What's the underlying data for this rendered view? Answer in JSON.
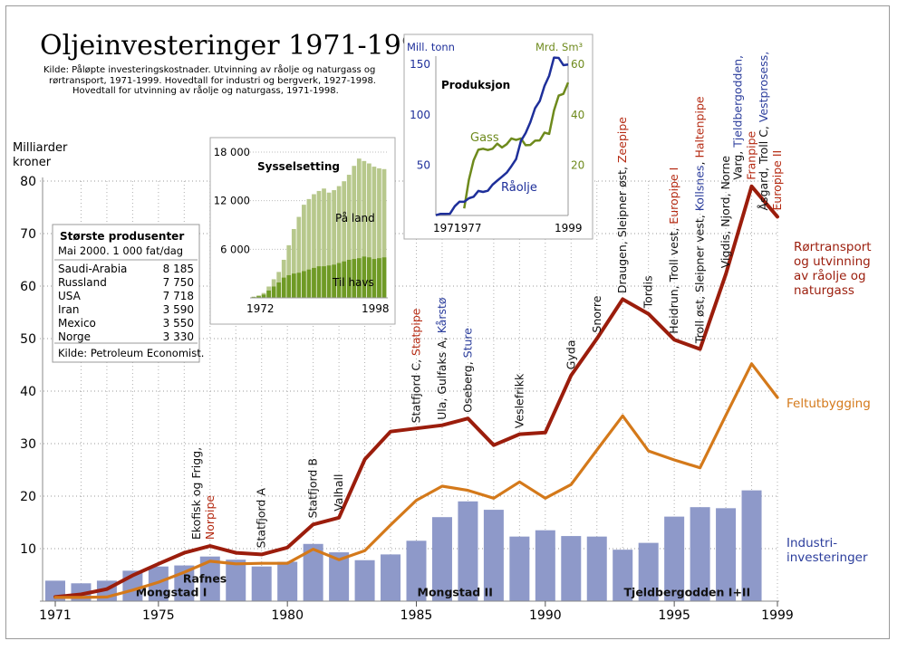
{
  "title": "Oljeinvesteringer 1971-1999",
  "source_lines": [
    "Kilde: Påløpte investeringskostnader. Utvinning av råolje og naturgass og",
    "rørtransport, 1971-1999. Hovedtall for industri og bergverk, 1927-1998.",
    "Hovedtall for utvinning av råolje og naturgass, 1971-1998."
  ],
  "colors": {
    "pipeline": "#9b1d0c",
    "field": "#d4791a",
    "industry_bar": "#8e99c9",
    "annot_black": "#111111",
    "annot_red": "#b52a12",
    "annot_blue": "#2b3d9c",
    "oil": "#1e2f9a",
    "gas": "#6e8a1c",
    "land": "#b7c88c",
    "sea": "#6f9a25"
  },
  "chart_data": {
    "type": "line",
    "ylabel": "Milliarder kroner",
    "ylim": [
      0,
      80
    ],
    "yticks": [
      10,
      20,
      30,
      40,
      50,
      60,
      70,
      80
    ],
    "xlim": [
      1971,
      1999
    ],
    "xticks": [
      1971,
      1975,
      1980,
      1985,
      1990,
      1995,
      1999
    ],
    "grid": "dotted",
    "x": [
      1971,
      1972,
      1973,
      1974,
      1975,
      1976,
      1977,
      1978,
      1979,
      1980,
      1981,
      1982,
      1983,
      1984,
      1985,
      1986,
      1987,
      1988,
      1989,
      1990,
      1991,
      1992,
      1993,
      1994,
      1995,
      1996,
      1997,
      1998,
      1999
    ],
    "series": [
      {
        "name": "Rørtransport og utvinning av råolje og naturgass",
        "type": "line",
        "values": [
          0.8,
          1.3,
          2.3,
          4.9,
          7.1,
          9.2,
          10.5,
          9.2,
          8.9,
          10.2,
          14.6,
          15.9,
          27.0,
          32.3,
          32.9,
          33.5,
          34.8,
          29.7,
          31.8,
          32.1,
          43.0,
          50.0,
          57.5,
          54.7,
          49.8,
          48.0,
          62.3,
          79.0,
          73.2
        ]
      },
      {
        "name": "Feltutbygging",
        "type": "line",
        "values": [
          0.7,
          0.7,
          0.8,
          2.1,
          3.6,
          5.5,
          7.6,
          7.1,
          7.2,
          7.2,
          9.9,
          7.9,
          9.6,
          14.5,
          19.2,
          21.9,
          21.1,
          19.6,
          22.7,
          19.6,
          22.2,
          28.8,
          35.3,
          28.6,
          26.9,
          25.4,
          35.4,
          45.2,
          38.8
        ]
      },
      {
        "name": "Industri-investeringer",
        "type": "bar",
        "values": [
          3.9,
          3.4,
          3.9,
          5.8,
          6.6,
          6.8,
          8.5,
          7.9,
          6.6,
          7.5,
          10.9,
          9.3,
          7.8,
          8.9,
          11.5,
          16.0,
          19.0,
          17.4,
          12.3,
          13.5,
          12.4,
          12.3,
          9.8,
          11.1,
          16.1,
          17.9,
          17.7,
          21.1,
          null
        ]
      }
    ],
    "series_labels": [
      {
        "lines": [
          "Rørtransport",
          "og utvinning",
          "av råolje og",
          "naturgass"
        ],
        "color": "#9b1d0c"
      },
      {
        "lines": [
          "Feltutbygging"
        ],
        "color": "#d4791a"
      },
      {
        "lines": [
          "Industri-",
          "investeringer"
        ],
        "color": "#2b3d9c"
      }
    ],
    "bar_labels": [
      {
        "text": "Rafnes",
        "x": 1976.8,
        "y": 3.2
      },
      {
        "text": "Mongstad I",
        "x": 1975.5,
        "y": 0.6
      },
      {
        "text": "Mongstad II",
        "x": 1986.5,
        "y": 0.6
      },
      {
        "text": "Tjeldbergodden I+II",
        "x": 1995.5,
        "y": 0.6
      }
    ],
    "annotations": [
      {
        "x": 1977,
        "y": 11.7,
        "parts": [
          [
            [
              "Ekofisk og Frigg,",
              "black"
            ]
          ],
          [
            [
              "Norpipe",
              "red"
            ]
          ]
        ]
      },
      {
        "x": 1979,
        "y": 10.1,
        "parts": [
          [
            [
              "Statfjord A",
              "black"
            ]
          ]
        ]
      },
      {
        "x": 1981,
        "y": 15.8,
        "parts": [
          [
            [
              "Statfjord B",
              "black"
            ]
          ]
        ]
      },
      {
        "x": 1982,
        "y": 17.1,
        "parts": [
          [
            [
              "Valhall",
              "black"
            ]
          ]
        ]
      },
      {
        "x": 1985,
        "y": 33.9,
        "parts": [
          [
            [
              "Statfjord C, ",
              "black"
            ],
            [
              "Statpipe",
              "red"
            ]
          ]
        ]
      },
      {
        "x": 1986,
        "y": 34.5,
        "parts": [
          [
            [
              "Ula, Gulfaks A, ",
              "black"
            ],
            [
              "Kårstø",
              "blue"
            ]
          ]
        ]
      },
      {
        "x": 1987,
        "y": 35.9,
        "parts": [
          [
            [
              "Oseberg, ",
              "black"
            ],
            [
              "Sture",
              "blue"
            ]
          ]
        ]
      },
      {
        "x": 1989,
        "y": 32.9,
        "parts": [
          [
            [
              "Veslefrikk",
              "black"
            ]
          ]
        ]
      },
      {
        "x": 1991,
        "y": 44.1,
        "parts": [
          [
            [
              "Gyda",
              "black"
            ]
          ]
        ]
      },
      {
        "x": 1992,
        "y": 51.1,
        "parts": [
          [
            [
              "Snorre",
              "black"
            ]
          ]
        ]
      },
      {
        "x": 1993,
        "y": 58.6,
        "parts": [
          [
            [
              "Draugen, Sleipner øst, ",
              "black"
            ],
            [
              "Zeepipe",
              "red"
            ]
          ]
        ]
      },
      {
        "x": 1994,
        "y": 55.8,
        "parts": [
          [
            [
              "Tordis",
              "black"
            ]
          ]
        ]
      },
      {
        "x": 1995,
        "y": 50.9,
        "parts": [
          [
            [
              "Heidrun, Troll vest, ",
              "black"
            ],
            [
              "Europipe I",
              "red"
            ]
          ]
        ]
      },
      {
        "x": 1996,
        "y": 49.1,
        "parts": [
          [
            [
              "Troll øst, Sleipner vest, ",
              "black"
            ],
            [
              "Kollsnes",
              "blue"
            ],
            [
              ", ",
              "black"
            ],
            [
              "Haltenpipe",
              "red"
            ]
          ]
        ]
      },
      {
        "x": 1997,
        "y": 63.4,
        "parts": [
          [
            [
              "Vigdis, Njord, Norne",
              "black"
            ]
          ]
        ]
      },
      {
        "x": 1998,
        "y": 80.2,
        "parts": [
          [
            [
              "Varg, ",
              "black"
            ],
            [
              "Tjeldbergodden,",
              "blue"
            ]
          ],
          [
            [
              "Franpipe",
              "red"
            ]
          ]
        ]
      },
      {
        "x": 1999,
        "y": 74.4,
        "parts": [
          [
            [
              "Åsgard, Troll C, ",
              "black"
            ],
            [
              "Vestprosess,",
              "blue"
            ]
          ],
          [
            [
              "Europipe II",
              "red"
            ]
          ]
        ]
      }
    ]
  },
  "producers_table": {
    "title": "Største produsenter",
    "subtitle": "Mai 2000. 1 000 fat/dag",
    "rows": [
      {
        "country": "Saudi-Arabia",
        "value": "8 185"
      },
      {
        "country": "Russland",
        "value": "7 750"
      },
      {
        "country": "USA",
        "value": "7 718"
      },
      {
        "country": "Iran",
        "value": "3 590"
      },
      {
        "country": "Mexico",
        "value": "3 550"
      },
      {
        "country": "Norge",
        "value": "3 330"
      }
    ],
    "source": "Kilde: Petroleum Economist."
  },
  "employment_inset": {
    "type": "area",
    "title": "Sysselsetting",
    "ylim": [
      0,
      18000
    ],
    "yticks": [
      "6 000",
      "12 000",
      "18 000"
    ],
    "x_labels": [
      "1972",
      "1998"
    ],
    "series_labels": [
      "På land",
      "Til havs"
    ],
    "years": [
      1972,
      1973,
      1974,
      1975,
      1976,
      1977,
      1978,
      1979,
      1980,
      1981,
      1982,
      1983,
      1984,
      1985,
      1986,
      1987,
      1988,
      1989,
      1990,
      1991,
      1992,
      1993,
      1994,
      1995,
      1996,
      1997,
      1998
    ],
    "til_havs": [
      100,
      200,
      400,
      900,
      1400,
      1900,
      2500,
      2800,
      3000,
      3100,
      3300,
      3500,
      3700,
      3900,
      3900,
      4000,
      4100,
      4300,
      4500,
      4700,
      4800,
      4900,
      5100,
      5000,
      4800,
      4900,
      5000
    ],
    "total": [
      150,
      300,
      600,
      1400,
      2300,
      3200,
      4700,
      6500,
      8500,
      10000,
      11500,
      12200,
      12800,
      13200,
      13500,
      13000,
      13300,
      13800,
      14400,
      15200,
      16300,
      17200,
      16900,
      16600,
      16200,
      16000,
      15900
    ]
  },
  "production_inset": {
    "type": "line",
    "title": "Produksjon",
    "left_axis_title": "Mill. tonn",
    "right_axis_title": "Mrd. Sm³",
    "left_ylim": [
      0,
      160
    ],
    "right_ylim": [
      0,
      64
    ],
    "left_ticks": [
      50,
      100,
      150
    ],
    "right_ticks": [
      20,
      40,
      60
    ],
    "x_labels": [
      "1971",
      "1977",
      "1999"
    ],
    "series_labels": [
      "Gass",
      "Råolje"
    ],
    "years": [
      1971,
      1972,
      1973,
      1974,
      1975,
      1976,
      1977,
      1978,
      1979,
      1980,
      1981,
      1982,
      1983,
      1984,
      1985,
      1986,
      1987,
      1988,
      1989,
      1990,
      1991,
      1992,
      1993,
      1994,
      1995,
      1996,
      1997,
      1998,
      1999
    ],
    "oil": [
      0.3,
      1.6,
      1.6,
      1.7,
      9.2,
      13.7,
      13.6,
      17.1,
      18.6,
      24.4,
      23.4,
      24.5,
      30.6,
      34.6,
      38.5,
      42.5,
      48.9,
      56.0,
      74.0,
      81.8,
      92.6,
      106.4,
      113.6,
      128.5,
      138.8,
      156.8,
      156.4,
      149.2,
      149.8
    ],
    "gas": [
      null,
      null,
      null,
      null,
      null,
      null,
      2.8,
      14.2,
      21.9,
      26.1,
      26.5,
      26.0,
      26.5,
      28.5,
      27.0,
      28.3,
      30.6,
      30.0,
      30.6,
      27.9,
      28.0,
      29.7,
      29.8,
      32.9,
      32.4,
      41.7,
      47.6,
      48.3,
      52.8
    ]
  }
}
